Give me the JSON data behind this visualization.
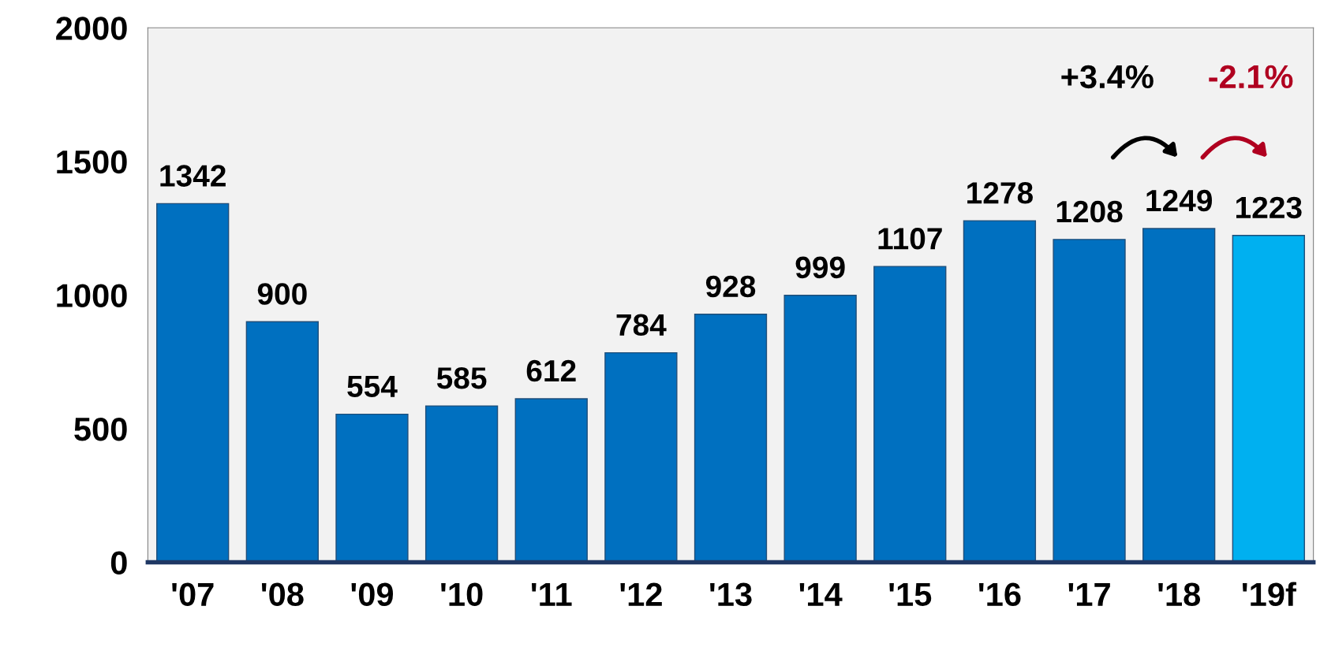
{
  "chart_data": {
    "type": "bar",
    "categories": [
      "'07",
      "'08",
      "'09",
      "'10",
      "'11",
      "'12",
      "'13",
      "'14",
      "'15",
      "'16",
      "'17",
      "'18",
      "'19f"
    ],
    "values": [
      1342,
      900,
      554,
      585,
      612,
      784,
      928,
      999,
      1107,
      1278,
      1208,
      1249,
      1223
    ],
    "colors": [
      "#0070c0",
      "#0070c0",
      "#0070c0",
      "#0070c0",
      "#0070c0",
      "#0070c0",
      "#0070c0",
      "#0070c0",
      "#0070c0",
      "#0070c0",
      "#0070c0",
      "#0070c0",
      "#00b0f0"
    ],
    "ylim": [
      0,
      2000
    ],
    "yticks": [
      0,
      500,
      1000,
      1500,
      2000
    ],
    "grid": false,
    "data_labels": true,
    "annotations": [
      "+3.4%",
      "-2.1%"
    ]
  }
}
